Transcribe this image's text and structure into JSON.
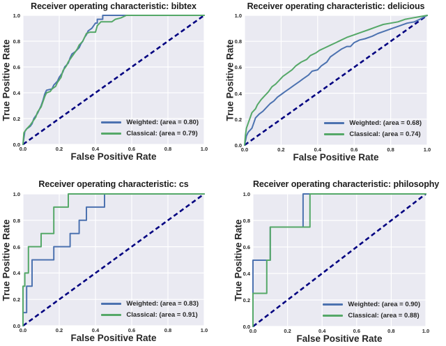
{
  "figure": {
    "background": "#ffffff"
  },
  "colors": {
    "weighted": "#4C72B0",
    "classical": "#55A868",
    "diagonal": "#000080",
    "plot_background": "#EAEAF2",
    "gridline": "#FFFFFF",
    "text": "#262626"
  },
  "chart_data": [
    {
      "id": "bibtex",
      "type": "line",
      "title": "Receiver operating characteristic: bibtex",
      "xlabel": "False Positive Rate",
      "ylabel": "True Positive Rate",
      "xlim": [
        0.0,
        1.0
      ],
      "ylim": [
        0.0,
        1.0
      ],
      "xticks": [
        "0.0",
        "0.2",
        "0.4",
        "0.6",
        "0.8",
        "1.0"
      ],
      "yticks": [
        "0.0",
        "0.2",
        "0.4",
        "0.6",
        "0.8",
        "1.0"
      ],
      "grid": true,
      "legend": {
        "position": "lower right",
        "frame": false
      },
      "series": [
        {
          "name": "Weighted: (area = 0.80)",
          "label": "Weighted",
          "area": 0.8,
          "color_key": "weighted",
          "points": [
            [
              0,
              0
            ],
            [
              0.01,
              0.1
            ],
            [
              0.02,
              0.12
            ],
            [
              0.04,
              0.14
            ],
            [
              0.05,
              0.16
            ],
            [
              0.06,
              0.2
            ],
            [
              0.08,
              0.24
            ],
            [
              0.09,
              0.27
            ],
            [
              0.1,
              0.3
            ],
            [
              0.11,
              0.34
            ],
            [
              0.12,
              0.39
            ],
            [
              0.13,
              0.42
            ],
            [
              0.16,
              0.43
            ],
            [
              0.17,
              0.46
            ],
            [
              0.19,
              0.49
            ],
            [
              0.2,
              0.52
            ],
            [
              0.22,
              0.56
            ],
            [
              0.23,
              0.6
            ],
            [
              0.25,
              0.63
            ],
            [
              0.26,
              0.67
            ],
            [
              0.27,
              0.7
            ],
            [
              0.29,
              0.72
            ],
            [
              0.31,
              0.75
            ],
            [
              0.32,
              0.78
            ],
            [
              0.33,
              0.8
            ],
            [
              0.34,
              0.83
            ],
            [
              0.35,
              0.85
            ],
            [
              0.36,
              0.88
            ],
            [
              0.38,
              0.9
            ],
            [
              0.39,
              0.92
            ],
            [
              0.4,
              0.94
            ],
            [
              0.41,
              0.94
            ],
            [
              0.41,
              0.97
            ],
            [
              0.44,
              0.97
            ],
            [
              0.44,
              1.0
            ],
            [
              1,
              1
            ]
          ]
        },
        {
          "name": "Classical: (area = 0.79)",
          "label": "Classical",
          "area": 0.79,
          "color_key": "classical",
          "points": [
            [
              0,
              0
            ],
            [
              0.005,
              0.09
            ],
            [
              0.02,
              0.12
            ],
            [
              0.04,
              0.15
            ],
            [
              0.05,
              0.17
            ],
            [
              0.07,
              0.21
            ],
            [
              0.08,
              0.25
            ],
            [
              0.1,
              0.29
            ],
            [
              0.11,
              0.33
            ],
            [
              0.12,
              0.37
            ],
            [
              0.13,
              0.4
            ],
            [
              0.15,
              0.41
            ],
            [
              0.16,
              0.43
            ],
            [
              0.18,
              0.45
            ],
            [
              0.19,
              0.48
            ],
            [
              0.21,
              0.52
            ],
            [
              0.22,
              0.57
            ],
            [
              0.24,
              0.61
            ],
            [
              0.25,
              0.64
            ],
            [
              0.27,
              0.68
            ],
            [
              0.28,
              0.7
            ],
            [
              0.3,
              0.74
            ],
            [
              0.31,
              0.77
            ],
            [
              0.33,
              0.8
            ],
            [
              0.34,
              0.83
            ],
            [
              0.35,
              0.86
            ],
            [
              0.37,
              0.87
            ],
            [
              0.4,
              0.87
            ],
            [
              0.41,
              0.92
            ],
            [
              0.43,
              0.95
            ],
            [
              0.49,
              0.95
            ],
            [
              0.51,
              0.97
            ],
            [
              0.54,
              0.98
            ],
            [
              0.57,
              1.0
            ],
            [
              1,
              1
            ]
          ]
        }
      ],
      "reference_line": {
        "style": "dashed",
        "color_key": "diagonal",
        "points": [
          [
            0,
            0
          ],
          [
            1,
            1
          ]
        ]
      }
    },
    {
      "id": "delicious",
      "type": "line",
      "title": "Receiver operating characteristic: delicious",
      "xlabel": "False Positive Rate",
      "ylabel": "True Positive Rate",
      "xlim": [
        0.0,
        1.0
      ],
      "ylim": [
        0.0,
        1.0
      ],
      "xticks": [
        "0.0",
        "0.2",
        "0.4",
        "0.6",
        "0.8",
        "1.0"
      ],
      "yticks": [
        "0.0",
        "0.2",
        "0.4",
        "0.6",
        "0.8",
        "1.0"
      ],
      "grid": true,
      "legend": {
        "position": "lower right",
        "frame": false
      },
      "series": [
        {
          "name": "Weighted: (area = 0.68)",
          "label": "Weighted",
          "area": 0.68,
          "color_key": "weighted",
          "points": [
            [
              0,
              0
            ],
            [
              0.01,
              0.07
            ],
            [
              0.02,
              0.1
            ],
            [
              0.04,
              0.13
            ],
            [
              0.05,
              0.17
            ],
            [
              0.06,
              0.21
            ],
            [
              0.08,
              0.24
            ],
            [
              0.1,
              0.26
            ],
            [
              0.12,
              0.29
            ],
            [
              0.14,
              0.32
            ],
            [
              0.16,
              0.34
            ],
            [
              0.18,
              0.37
            ],
            [
              0.2,
              0.39
            ],
            [
              0.22,
              0.41
            ],
            [
              0.25,
              0.44
            ],
            [
              0.27,
              0.46
            ],
            [
              0.3,
              0.49
            ],
            [
              0.32,
              0.51
            ],
            [
              0.35,
              0.54
            ],
            [
              0.37,
              0.57
            ],
            [
              0.4,
              0.58
            ],
            [
              0.42,
              0.61
            ],
            [
              0.45,
              0.64
            ],
            [
              0.47,
              0.68
            ],
            [
              0.5,
              0.71
            ],
            [
              0.53,
              0.74
            ],
            [
              0.56,
              0.76
            ],
            [
              0.58,
              0.76
            ],
            [
              0.6,
              0.79
            ],
            [
              0.63,
              0.81
            ],
            [
              0.66,
              0.82
            ],
            [
              0.7,
              0.84
            ],
            [
              0.73,
              0.86
            ],
            [
              0.77,
              0.88
            ],
            [
              0.81,
              0.9
            ],
            [
              0.85,
              0.92
            ],
            [
              0.89,
              0.94
            ],
            [
              0.93,
              0.95
            ],
            [
              0.96,
              0.97
            ],
            [
              1,
              1
            ]
          ]
        },
        {
          "name": "Classical: (area = 0.74)",
          "label": "Classical",
          "area": 0.74,
          "color_key": "classical",
          "points": [
            [
              0,
              0
            ],
            [
              0.005,
              0.08
            ],
            [
              0.01,
              0.13
            ],
            [
              0.02,
              0.17
            ],
            [
              0.03,
              0.21
            ],
            [
              0.04,
              0.25
            ],
            [
              0.06,
              0.28
            ],
            [
              0.07,
              0.31
            ],
            [
              0.09,
              0.35
            ],
            [
              0.11,
              0.38
            ],
            [
              0.13,
              0.41
            ],
            [
              0.15,
              0.45
            ],
            [
              0.17,
              0.47
            ],
            [
              0.19,
              0.5
            ],
            [
              0.21,
              0.53
            ],
            [
              0.23,
              0.55
            ],
            [
              0.26,
              0.58
            ],
            [
              0.28,
              0.61
            ],
            [
              0.31,
              0.64
            ],
            [
              0.34,
              0.66
            ],
            [
              0.36,
              0.69
            ],
            [
              0.39,
              0.71
            ],
            [
              0.41,
              0.73
            ],
            [
              0.44,
              0.75
            ],
            [
              0.47,
              0.77
            ],
            [
              0.5,
              0.79
            ],
            [
              0.53,
              0.81
            ],
            [
              0.56,
              0.83
            ],
            [
              0.6,
              0.85
            ],
            [
              0.64,
              0.87
            ],
            [
              0.68,
              0.89
            ],
            [
              0.72,
              0.91
            ],
            [
              0.76,
              0.93
            ],
            [
              0.8,
              0.94
            ],
            [
              0.84,
              0.95
            ],
            [
              0.88,
              0.97
            ],
            [
              0.92,
              0.98
            ],
            [
              0.96,
              0.99
            ],
            [
              1,
              1
            ]
          ]
        }
      ],
      "reference_line": {
        "style": "dashed",
        "color_key": "diagonal",
        "points": [
          [
            0,
            0
          ],
          [
            1,
            1
          ]
        ]
      }
    },
    {
      "id": "cs",
      "type": "line",
      "title": "Receiver operating characteristic: cs",
      "xlabel": "False Positive Rate",
      "ylabel": "True Positive Rate",
      "xlim": [
        0.0,
        1.0
      ],
      "ylim": [
        0.0,
        1.0
      ],
      "xticks": [
        "0.0",
        "0.2",
        "0.4",
        "0.6",
        "0.8",
        "1.0"
      ],
      "yticks": [
        "0.0",
        "0.2",
        "0.4",
        "0.6",
        "0.8",
        "1.0"
      ],
      "grid": true,
      "legend": {
        "position": "lower right",
        "frame": false
      },
      "series": [
        {
          "name": "Weighted: (area = 0.83)",
          "label": "Weighted",
          "area": 0.83,
          "color_key": "weighted",
          "points": [
            [
              0,
              0
            ],
            [
              0,
              0.1
            ],
            [
              0.02,
              0.1
            ],
            [
              0.02,
              0.3
            ],
            [
              0.05,
              0.3
            ],
            [
              0.05,
              0.5
            ],
            [
              0.17,
              0.5
            ],
            [
              0.17,
              0.6
            ],
            [
              0.26,
              0.6
            ],
            [
              0.26,
              0.7
            ],
            [
              0.31,
              0.7
            ],
            [
              0.31,
              0.8
            ],
            [
              0.35,
              0.8
            ],
            [
              0.35,
              0.9
            ],
            [
              0.45,
              0.9
            ],
            [
              0.45,
              1.0
            ],
            [
              1,
              1
            ]
          ]
        },
        {
          "name": "Classical: (area = 0.91)",
          "label": "Classical",
          "area": 0.91,
          "color_key": "classical",
          "points": [
            [
              0,
              0
            ],
            [
              0,
              0.3
            ],
            [
              0.01,
              0.3
            ],
            [
              0.01,
              0.4
            ],
            [
              0.03,
              0.4
            ],
            [
              0.03,
              0.6
            ],
            [
              0.1,
              0.6
            ],
            [
              0.1,
              0.7
            ],
            [
              0.17,
              0.7
            ],
            [
              0.17,
              0.9
            ],
            [
              0.25,
              0.9
            ],
            [
              0.25,
              1.0
            ],
            [
              1,
              1
            ]
          ]
        }
      ],
      "reference_line": {
        "style": "dashed",
        "color_key": "diagonal",
        "points": [
          [
            0,
            0
          ],
          [
            1,
            1
          ]
        ]
      }
    },
    {
      "id": "philosophy",
      "type": "line",
      "title": "Receiver operating characteristic: philosophy",
      "xlabel": "False Positive Rate",
      "ylabel": "True Positive Rate",
      "xlim": [
        0.0,
        1.0
      ],
      "ylim": [
        0.0,
        1.0
      ],
      "xticks": [
        "0.0",
        "0.2",
        "0.4",
        "0.6",
        "0.8",
        "1.0"
      ],
      "yticks": [
        "0.0",
        "0.2",
        "0.4",
        "0.6",
        "0.8",
        "1.0"
      ],
      "grid": true,
      "legend": {
        "position": "lower right",
        "frame": false
      },
      "series": [
        {
          "name": "Weighted: (area = 0.90)",
          "label": "Weighted",
          "area": 0.9,
          "color_key": "weighted",
          "points": [
            [
              0,
              0
            ],
            [
              0,
              0.5
            ],
            [
              0.1,
              0.5
            ],
            [
              0.1,
              0.75
            ],
            [
              0.29,
              0.75
            ],
            [
              0.29,
              1.0
            ],
            [
              1,
              1
            ]
          ]
        },
        {
          "name": "Classical: (area = 0.88)",
          "label": "Classical",
          "area": 0.88,
          "color_key": "classical",
          "points": [
            [
              0,
              0
            ],
            [
              0,
              0.25
            ],
            [
              0.08,
              0.25
            ],
            [
              0.08,
              0.5
            ],
            [
              0.1,
              0.5
            ],
            [
              0.1,
              0.75
            ],
            [
              0.33,
              0.75
            ],
            [
              0.33,
              1.0
            ],
            [
              1,
              1
            ]
          ]
        }
      ],
      "reference_line": {
        "style": "dashed",
        "color_key": "diagonal",
        "points": [
          [
            0,
            0
          ],
          [
            1,
            1
          ]
        ]
      }
    }
  ]
}
